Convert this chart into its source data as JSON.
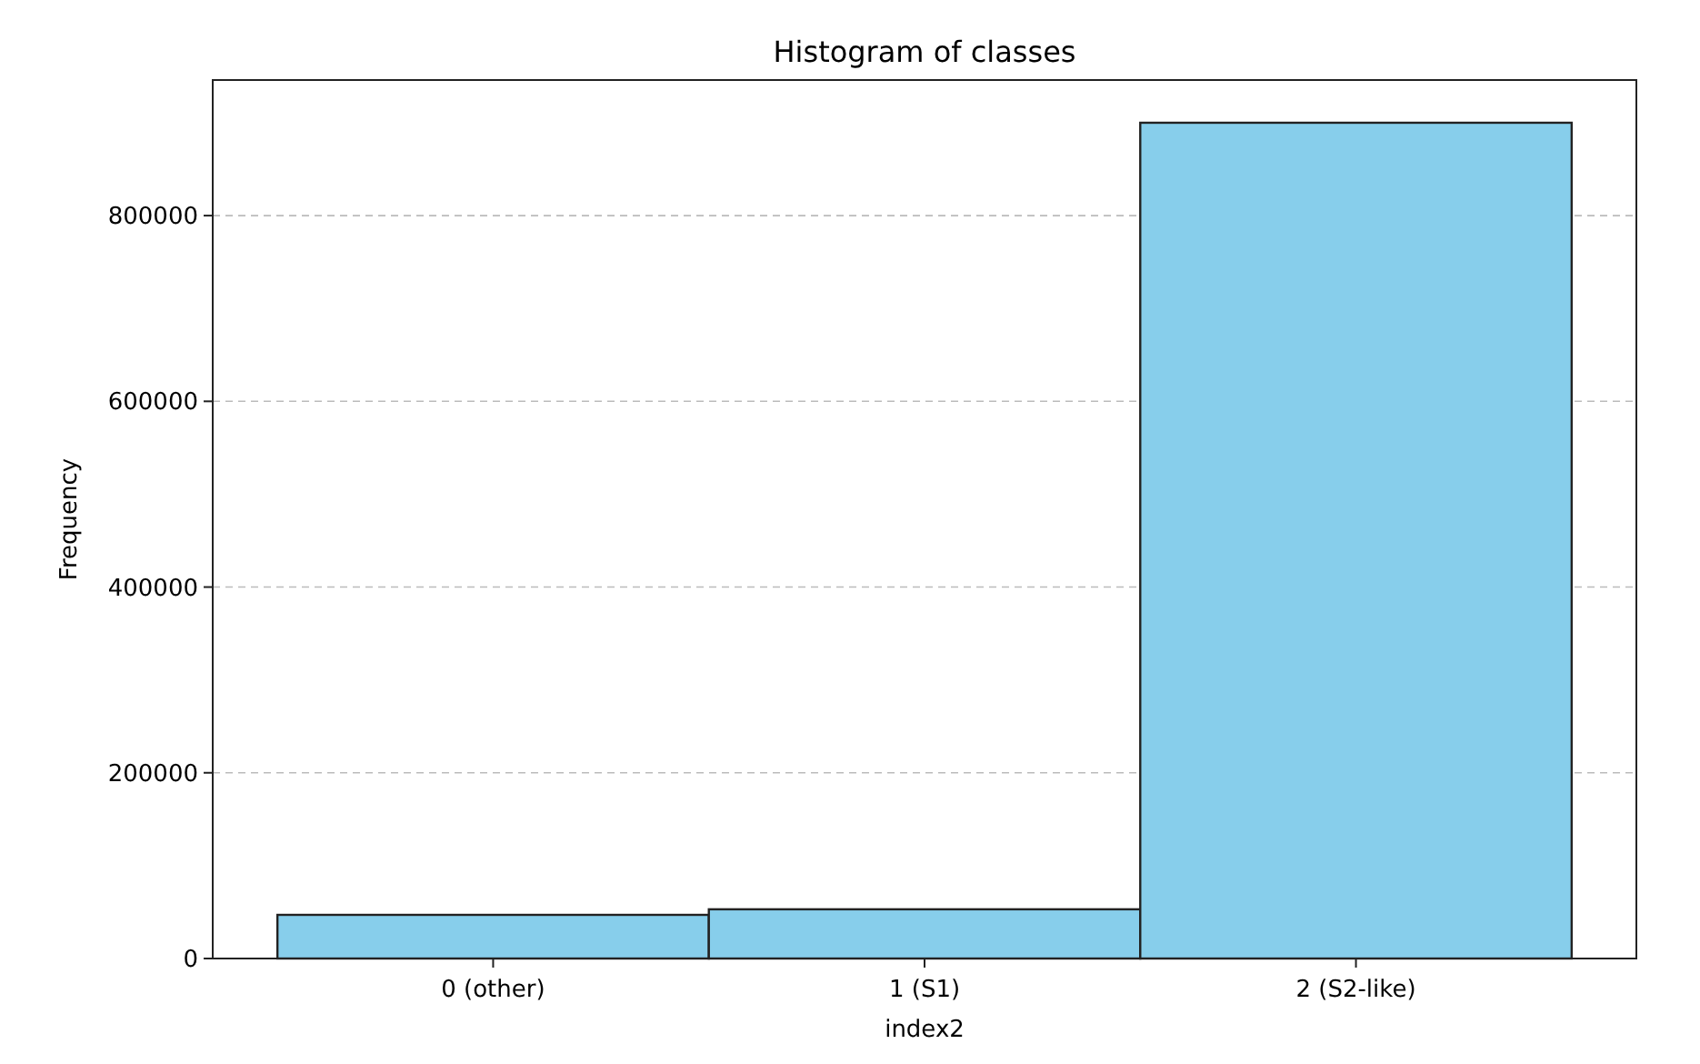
{
  "chart_data": {
    "type": "bar",
    "title": "Histogram of classes",
    "xlabel": "index2",
    "ylabel": "Frequency",
    "categories": [
      "0 (other)",
      "1 (S1)",
      "2 (S2-like)"
    ],
    "values": [
      47000,
      53000,
      900000
    ],
    "color": "#87ceeb",
    "ylim": [
      0,
      946000
    ],
    "yticks": [
      0,
      200000,
      400000,
      600000,
      800000
    ],
    "grid": "y"
  }
}
